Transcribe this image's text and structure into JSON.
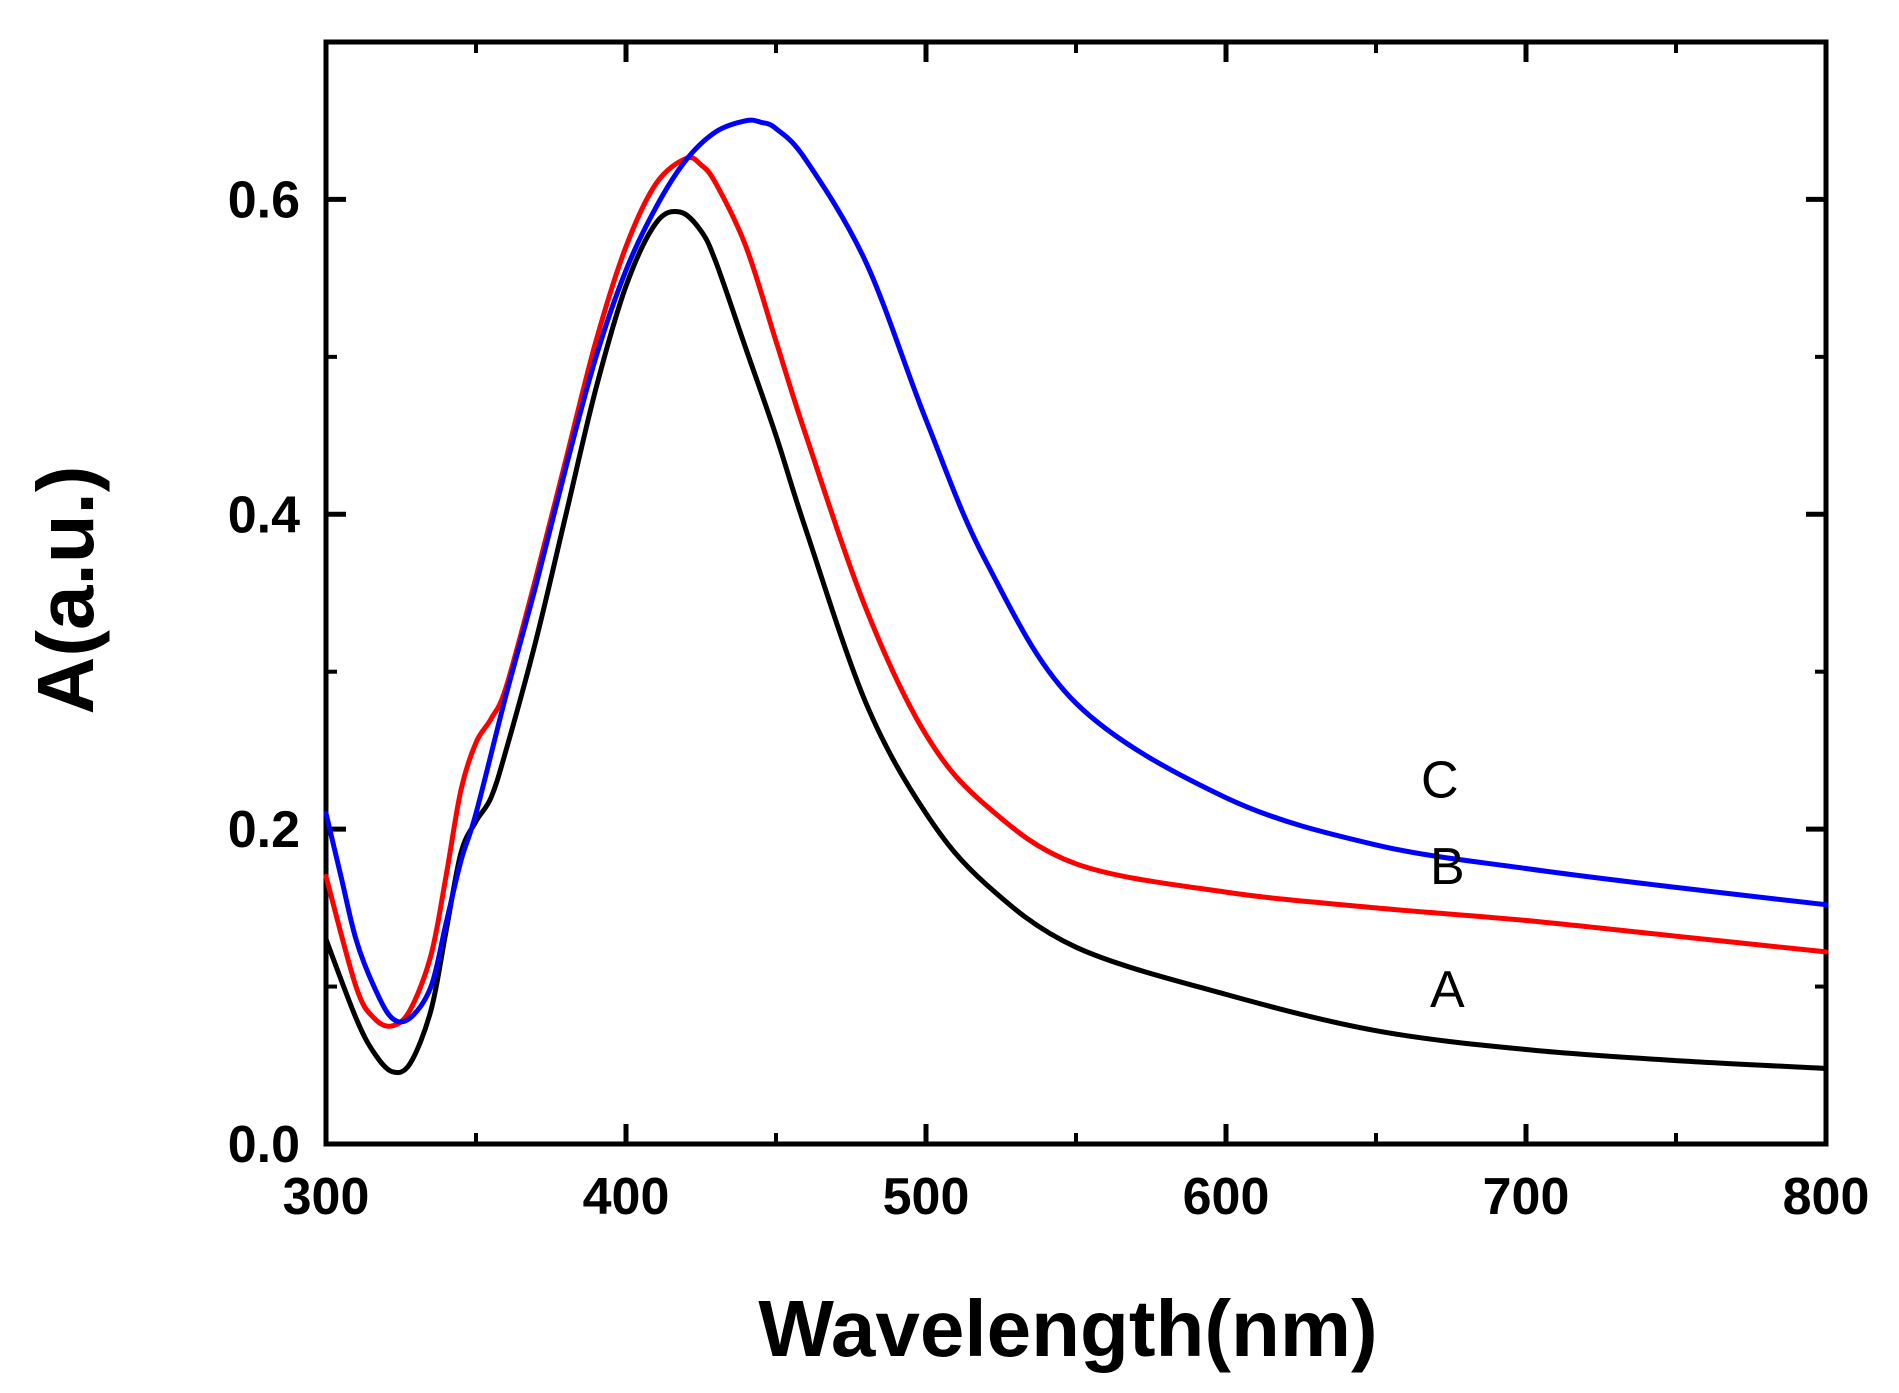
{
  "chart_data": {
    "type": "line",
    "title": "",
    "xlabel": "Wavelength(nm)",
    "ylabel": "A(a.u.)",
    "xlim": [
      300,
      800
    ],
    "ylim": [
      0,
      0.7
    ],
    "xticks": [
      300,
      400,
      500,
      600,
      700,
      800
    ],
    "xtick_labels": [
      "300",
      "400",
      "500",
      "600",
      "700",
      "800"
    ],
    "yticks": [
      0.0,
      0.2,
      0.4,
      0.6
    ],
    "ytick_labels": [
      "0.0",
      "0.2",
      "0.4",
      "0.6"
    ],
    "grid": false,
    "legend": "none",
    "series": [
      {
        "name": "A",
        "color": "#000000",
        "x": [
          300,
          310,
          316,
          322,
          328,
          335,
          340,
          345,
          350,
          355,
          360,
          370,
          380,
          390,
          400,
          410,
          418,
          425,
          430,
          440,
          450,
          460,
          480,
          500,
          520,
          550,
          600,
          650,
          700,
          750,
          800
        ],
        "y": [
          0.13,
          0.08,
          0.058,
          0.046,
          0.051,
          0.085,
          0.135,
          0.185,
          0.205,
          0.22,
          0.25,
          0.32,
          0.4,
          0.48,
          0.545,
          0.585,
          0.592,
          0.58,
          0.56,
          0.505,
          0.45,
          0.39,
          0.28,
          0.21,
          0.165,
          0.125,
          0.095,
          0.072,
          0.06,
          0.053,
          0.048
        ]
      },
      {
        "name": "B",
        "color": "#ff0000",
        "x": [
          300,
          310,
          316,
          322,
          328,
          335,
          340,
          345,
          350,
          355,
          360,
          370,
          380,
          390,
          400,
          410,
          420,
          425,
          430,
          440,
          450,
          460,
          480,
          500,
          520,
          550,
          600,
          650,
          700,
          750,
          800
        ],
        "y": [
          0.17,
          0.1,
          0.08,
          0.075,
          0.085,
          0.12,
          0.17,
          0.225,
          0.255,
          0.27,
          0.29,
          0.36,
          0.435,
          0.51,
          0.57,
          0.61,
          0.626,
          0.622,
          0.61,
          0.57,
          0.51,
          0.45,
          0.34,
          0.26,
          0.215,
          0.178,
          0.16,
          0.15,
          0.142,
          0.132,
          0.122
        ]
      },
      {
        "name": "C",
        "color": "#0000ff",
        "x": [
          300,
          305,
          310,
          316,
          322,
          328,
          335,
          340,
          345,
          350,
          360,
          370,
          380,
          390,
          400,
          410,
          420,
          430,
          440,
          445,
          450,
          460,
          480,
          500,
          520,
          550,
          600,
          650,
          700,
          750,
          800
        ],
        "y": [
          0.21,
          0.17,
          0.13,
          0.1,
          0.08,
          0.08,
          0.1,
          0.14,
          0.18,
          0.21,
          0.285,
          0.355,
          0.43,
          0.5,
          0.555,
          0.595,
          0.625,
          0.643,
          0.65,
          0.649,
          0.645,
          0.625,
          0.56,
          0.46,
          0.37,
          0.28,
          0.22,
          0.19,
          0.175,
          0.163,
          0.152
        ]
      }
    ],
    "annotations": [
      {
        "text": "C",
        "x": 665,
        "y": 0.22
      },
      {
        "text": "B",
        "x": 668,
        "y": 0.165
      },
      {
        "text": "A",
        "x": 668,
        "y": 0.087
      }
    ]
  }
}
